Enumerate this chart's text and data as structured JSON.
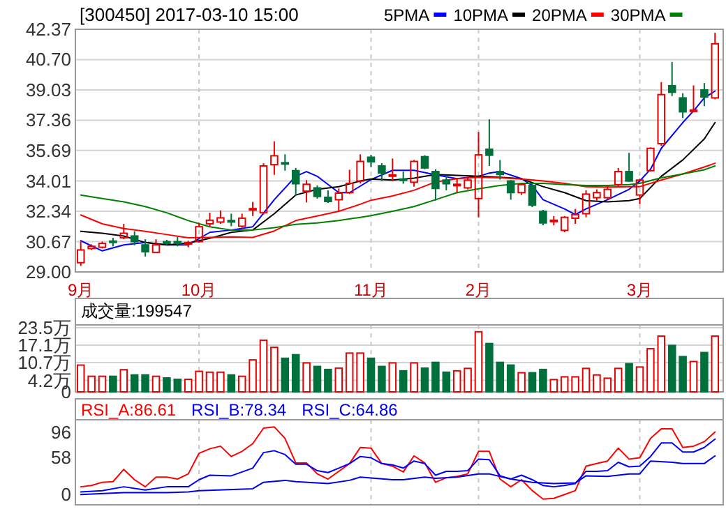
{
  "chart_data": [
    {
      "type": "candlestick",
      "title": "[300450] 2017-03-10 15:00",
      "legend": "top",
      "grid": true,
      "categories": [
        "9月",
        null,
        null,
        null,
        null,
        null,
        null,
        null,
        null,
        null,
        null,
        "10月",
        null,
        null,
        null,
        null,
        null,
        null,
        null,
        null,
        null,
        null,
        null,
        null,
        null,
        null,
        null,
        "11月",
        null,
        null,
        null,
        null,
        null,
        null,
        null,
        null,
        null,
        "2月",
        null,
        null,
        null,
        null,
        null,
        null,
        null,
        null,
        null,
        null,
        null,
        null,
        null,
        null,
        "3月",
        null,
        null,
        null,
        null,
        null,
        null,
        null
      ],
      "ylim": [
        29,
        42.37
      ],
      "yticks": [
        {
          "value": 29,
          "label": "29.00"
        },
        30.67,
        32.34,
        34.01,
        35.69,
        37.36,
        39.03,
        {
          "value": 40.7,
          "label": "40.70"
        },
        42.37
      ],
      "ohlc": [
        [
          29.51,
          30.67,
          29.33,
          30.21
        ],
        [
          30.29,
          30.52,
          30.21,
          30.41
        ],
        [
          30.36,
          30.67,
          30.29,
          30.57
        ],
        [
          30.7,
          30.88,
          30.41,
          30.64
        ],
        [
          30.88,
          31.65,
          30.8,
          31.13
        ],
        [
          30.98,
          31.24,
          30.47,
          30.67
        ],
        [
          30.49,
          30.8,
          29.85,
          30.11
        ],
        [
          30.08,
          30.8,
          30.08,
          30.49
        ],
        [
          30.67,
          30.77,
          30.47,
          30.57
        ],
        [
          30.67,
          30.93,
          30.41,
          30.57
        ],
        [
          30.57,
          30.72,
          30.36,
          30.62
        ],
        [
          30.67,
          31.7,
          30.62,
          31.49
        ],
        [
          31.65,
          32.26,
          31.49,
          31.85
        ],
        [
          31.75,
          32.39,
          31.65,
          31.98
        ],
        [
          31.83,
          32.21,
          31.52,
          31.75
        ],
        [
          31.52,
          32.21,
          31.44,
          31.96
        ],
        [
          32.44,
          32.86,
          32.08,
          32.49
        ],
        [
          32.26,
          34.99,
          32.16,
          34.84
        ],
        [
          34.91,
          36.2,
          34.35,
          35.4
        ],
        [
          35.02,
          35.48,
          34.58,
          34.97
        ],
        [
          34.58,
          34.73,
          33.19,
          33.86
        ],
        [
          33.45,
          34.06,
          32.83,
          33.83
        ],
        [
          33.63,
          33.76,
          33.04,
          33.16
        ],
        [
          33.11,
          33.5,
          32.8,
          32.88
        ],
        [
          32.98,
          33.6,
          32.34,
          33.34
        ],
        [
          33.37,
          34.63,
          33.29,
          33.88
        ],
        [
          34.01,
          35.48,
          33.88,
          35.09
        ],
        [
          35.32,
          35.45,
          34.78,
          35.07
        ],
        [
          34.84,
          34.99,
          34.01,
          34.45
        ],
        [
          34.3,
          35.25,
          34.01,
          34.35
        ],
        [
          34.12,
          34.53,
          33.86,
          34.09
        ],
        [
          33.94,
          35.17,
          33.7,
          35.09
        ],
        [
          35.35,
          35.43,
          34.66,
          34.73
        ],
        [
          34.53,
          34.66,
          32.93,
          33.6
        ],
        [
          34.06,
          34.27,
          33.5,
          33.86
        ],
        [
          33.78,
          34.14,
          33.37,
          33.83
        ],
        [
          33.63,
          34.22,
          33.55,
          34.06
        ],
        [
          33.04,
          36.71,
          32.01,
          35.45
        ],
        [
          35.76,
          37.41,
          34.84,
          35.43
        ],
        [
          34.53,
          35.17,
          34.09,
          34.37
        ],
        [
          34.01,
          34.06,
          32.98,
          33.37
        ],
        [
          33.37,
          33.88,
          33.24,
          33.81
        ],
        [
          33.76,
          33.88,
          32.57,
          32.68
        ],
        [
          32.34,
          32.42,
          31.57,
          31.7
        ],
        [
          31.8,
          32.08,
          31.57,
          31.85
        ],
        [
          31.29,
          32.08,
          31.19,
          32.01
        ],
        [
          31.96,
          32.47,
          31.65,
          32.16
        ],
        [
          32.21,
          33.5,
          32.01,
          33.29
        ],
        [
          33.09,
          33.55,
          32.93,
          33.37
        ],
        [
          33.09,
          33.76,
          32.98,
          33.55
        ],
        [
          33.81,
          34.73,
          33.7,
          34.53
        ],
        [
          34.53,
          35.56,
          33.96,
          34.01
        ],
        [
          33.24,
          34.14,
          32.73,
          34.06
        ],
        [
          34.58,
          35.86,
          34.53,
          35.81
        ],
        [
          36.07,
          39.46,
          35.94,
          38.77
        ],
        [
          39.26,
          40.57,
          38.69,
          38.9
        ],
        [
          38.59,
          38.85,
          37.48,
          37.82
        ],
        [
          37.9,
          39.28,
          37.87,
          37.92
        ],
        [
          39.03,
          39.41,
          38.13,
          38.64
        ],
        [
          38.59,
          42.18,
          38.51,
          41.57
        ]
      ],
      "colors": [
        "#e60000",
        "#e60000",
        "#e60000",
        "#00703c",
        "#e60000",
        "#00703c",
        "#00703c",
        "#e60000",
        "#00703c",
        "#00703c",
        "#e60000",
        "#e60000",
        "#e60000",
        "#e60000",
        "#00703c",
        "#e60000",
        "#e60000",
        "#e60000",
        "#e60000",
        "#00703c",
        "#00703c",
        "#e60000",
        "#00703c",
        "#00703c",
        "#e60000",
        "#e60000",
        "#e60000",
        "#00703c",
        "#00703c",
        "#e60000",
        "#00703c",
        "#e60000",
        "#00703c",
        "#00703c",
        "#00703c",
        "#e60000",
        "#e60000",
        "#e60000",
        "#00703c",
        "#00703c",
        "#00703c",
        "#e60000",
        "#00703c",
        "#00703c",
        "#e60000",
        "#e60000",
        "#e60000",
        "#e60000",
        "#e60000",
        "#e60000",
        "#e60000",
        "#00703c",
        "#e60000",
        "#e60000",
        "#e60000",
        "#00703c",
        "#00703c",
        "#e60000",
        "#00703c",
        "#e60000"
      ],
      "series": [
        {
          "name": "5PMA",
          "type": "line",
          "color": "#0000ff",
          "values": [
            30.72,
            null,
            30.16,
            null,
            30.49,
            null,
            30.62,
            null,
            30.49,
            null,
            30.49,
            null,
            31.18,
            null,
            31.31,
            null,
            31.49,
            null,
            32.98,
            null,
            34.27,
            34.53,
            34.27,
            null,
            33.37,
            33.37,
            null,
            34.09,
            null,
            34.6,
            null,
            34.6,
            null,
            34.35,
            null,
            34.14,
            null,
            34.27,
            34.45,
            34.53,
            null,
            34.14,
            33.76,
            32.98,
            null,
            32.47,
            32.16,
            32.47,
            null,
            32.98,
            null,
            33.55,
            34.01,
            34.66,
            35.81,
            null,
            37.23,
            37.87,
            38.59,
            38.97
          ]
        },
        {
          "name": "10PMA",
          "type": "line",
          "color": "#000000",
          "values": [
            31.24,
            null,
            31.13,
            null,
            30.98,
            null,
            30.62,
            null,
            30.49,
            null,
            30.59,
            null,
            30.85,
            null,
            31.18,
            null,
            31.31,
            null,
            32.21,
            null,
            33.24,
            null,
            33.55,
            null,
            33.7,
            null,
            34.01,
            34.12,
            null,
            34.06,
            null,
            34.17,
            null,
            34.37,
            null,
            34.32,
            null,
            34.27,
            null,
            34.22,
            null,
            34.14,
            null,
            33.7,
            null,
            33.37,
            null,
            32.93,
            null,
            32.86,
            null,
            32.93,
            33.04,
            null,
            34.27,
            null,
            35.17,
            null,
            36.33,
            37.23
          ]
        },
        {
          "name": "20PMA",
          "type": "line",
          "color": "#ff0000",
          "values": [
            32.14,
            null,
            31.65,
            null,
            31.39,
            null,
            31.24,
            null,
            31.06,
            null,
            30.88,
            null,
            30.9,
            null,
            30.93,
            null,
            30.9,
            null,
            31.26,
            null,
            31.83,
            null,
            32.08,
            null,
            32.34,
            null,
            32.73,
            32.95,
            null,
            33.19,
            null,
            33.5,
            null,
            33.96,
            null,
            34.14,
            null,
            34.22,
            null,
            34.19,
            null,
            34.12,
            null,
            34.01,
            null,
            33.88,
            null,
            33.7,
            null,
            33.68,
            null,
            33.7,
            33.7,
            null,
            34.06,
            null,
            34.4,
            null,
            34.78,
            34.99
          ]
        },
        {
          "name": "30PMA",
          "type": "line",
          "color": "#008000",
          "values": [
            33.24,
            null,
            33.04,
            null,
            32.86,
            null,
            32.6,
            null,
            32.26,
            null,
            31.83,
            null,
            31.49,
            null,
            31.31,
            null,
            31.31,
            null,
            31.44,
            null,
            31.62,
            null,
            31.7,
            null,
            31.83,
            null,
            32.01,
            32.1,
            null,
            32.34,
            null,
            32.6,
            null,
            32.98,
            null,
            33.37,
            null,
            33.58,
            null,
            33.76,
            null,
            33.88,
            null,
            33.88,
            null,
            33.81,
            null,
            33.76,
            null,
            33.76,
            null,
            33.81,
            33.88,
            null,
            34.19,
            null,
            34.4,
            null,
            34.63,
            34.84
          ]
        }
      ]
    },
    {
      "type": "bar",
      "title": "成交量:199547",
      "grid": true,
      "tick_labels": "y",
      "categories": [
        null,
        null,
        null,
        null,
        null,
        null,
        null,
        null,
        null,
        null,
        null,
        null,
        null,
        null,
        null,
        null,
        null,
        null,
        null,
        null,
        null,
        null,
        null,
        null,
        null,
        null,
        null,
        null,
        null,
        null,
        null,
        null,
        null,
        null,
        null,
        null,
        null,
        null,
        null,
        null,
        null,
        null,
        null,
        null,
        null,
        null,
        null,
        null,
        null,
        null,
        null,
        null,
        null,
        null,
        null,
        null,
        null,
        null,
        null,
        null
      ],
      "ylim": [
        0,
        24.5
      ],
      "yticks": [
        0,
        {
          "value": 4.2,
          "label": "4.2万"
        },
        {
          "value": 10.7,
          "label": "10.7万"
        },
        {
          "value": 17.1,
          "label": "17.1万"
        },
        {
          "value": 23.5,
          "label": "23.5万"
        }
      ],
      "values": [
        9.8,
        5.7,
        5.7,
        5.7,
        8.1,
        6.2,
        6.2,
        5.7,
        5.1,
        4.6,
        4.6,
        7.5,
        7.2,
        7.2,
        6.2,
        5.7,
        11.7,
        18.9,
        16.3,
        12.3,
        13.6,
        10.6,
        9.3,
        8.2,
        8.7,
        14.2,
        14.2,
        12.3,
        9.3,
        10.6,
        7.7,
        10.6,
        8.7,
        10.8,
        7.2,
        7.7,
        8.6,
        22.0,
        17.7,
        10.8,
        9.8,
        7.0,
        7.0,
        8.2,
        4.5,
        5.5,
        5.5,
        8.6,
        6.2,
        5.0,
        8.6,
        10.3,
        9.1,
        15.8,
        20.4,
        17.0,
        12.9,
        11.1,
        14.4,
        20.4
      ],
      "colors": [
        "#e60000",
        "#e60000",
        "#e60000",
        "#00703c",
        "#e60000",
        "#00703c",
        "#00703c",
        "#e60000",
        "#00703c",
        "#00703c",
        "#e60000",
        "#e60000",
        "#e60000",
        "#e60000",
        "#00703c",
        "#e60000",
        "#e60000",
        "#e60000",
        "#e60000",
        "#00703c",
        "#00703c",
        "#e60000",
        "#00703c",
        "#00703c",
        "#e60000",
        "#e60000",
        "#e60000",
        "#00703c",
        "#00703c",
        "#e60000",
        "#00703c",
        "#e60000",
        "#00703c",
        "#00703c",
        "#00703c",
        "#e60000",
        "#e60000",
        "#e60000",
        "#00703c",
        "#00703c",
        "#00703c",
        "#e60000",
        "#00703c",
        "#00703c",
        "#e60000",
        "#e60000",
        "#e60000",
        "#e60000",
        "#e60000",
        "#e60000",
        "#e60000",
        "#00703c",
        "#e60000",
        "#e60000",
        "#e60000",
        "#00703c",
        "#00703c",
        "#e60000",
        "#00703c",
        "#e60000"
      ]
    },
    {
      "type": "line",
      "legend": "top left",
      "grid": "x",
      "tick_labels": "y",
      "categories": [
        null,
        null,
        null,
        null,
        null,
        null,
        null,
        null,
        null,
        null,
        null,
        null,
        null,
        null,
        null,
        null,
        null,
        null,
        null,
        null,
        null,
        null,
        null,
        null,
        null,
        null,
        null,
        null,
        null,
        null,
        null,
        null,
        null,
        null,
        null,
        null,
        null,
        null,
        null,
        null,
        null,
        null,
        null,
        null,
        null,
        null,
        null,
        null,
        null,
        null,
        null,
        null,
        null,
        null,
        null,
        null,
        null,
        null,
        null,
        null
      ],
      "ylim": [
        -16,
        116
      ],
      "yticks": [
        0,
        58,
        96
      ],
      "series": [
        {
          "name": "RSI_A:86.61",
          "color": "#ff0000",
          "values": [
            12,
            14,
            19,
            20,
            39,
            23,
            12,
            27,
            27,
            24,
            32,
            64,
            71,
            75,
            59,
            67,
            79,
            103,
            105,
            87,
            49,
            49,
            32,
            24,
            36,
            48,
            73,
            72,
            48,
            44,
            35,
            60,
            49,
            19,
            26,
            28,
            32,
            67,
            67,
            24,
            12,
            23,
            6,
            -7,
            -6,
            0,
            6,
            44,
            48,
            52,
            72,
            55,
            57,
            87,
            102,
            102,
            73,
            75,
            82,
            97
          ]
        },
        {
          "name": "RSI_B:78.34",
          "color": "#0000ff",
          "values": [
            4,
            null,
            6,
            null,
            12,
            null,
            7,
            null,
            12,
            null,
            12,
            23,
            30,
            null,
            29,
            null,
            41,
            65,
            68,
            62,
            47,
            47,
            37,
            34,
            41,
            48,
            59,
            57,
            48,
            46,
            41,
            52,
            48,
            30,
            36,
            36,
            37,
            55,
            54,
            29,
            24,
            30,
            23,
            14,
            12,
            14,
            17,
            36,
            36,
            37,
            50,
            43,
            44,
            59,
            80,
            80,
            66,
            66,
            73,
            86
          ]
        },
        {
          "name": "RSI_C:64.86",
          "color": "#0000e6",
          "values": [
            0,
            null,
            null,
            null,
            3,
            null,
            null,
            null,
            3,
            null,
            4,
            6,
            null,
            null,
            null,
            null,
            9,
            19,
            null,
            22,
            20,
            null,
            null,
            17,
            null,
            22,
            27,
            null,
            null,
            23,
            23,
            null,
            27,
            25,
            null,
            27,
            null,
            32,
            32,
            null,
            24,
            null,
            19,
            null,
            17,
            null,
            18,
            29,
            null,
            28,
            null,
            32,
            32,
            52,
            null,
            50,
            48,
            null,
            48,
            60
          ]
        }
      ]
    }
  ]
}
